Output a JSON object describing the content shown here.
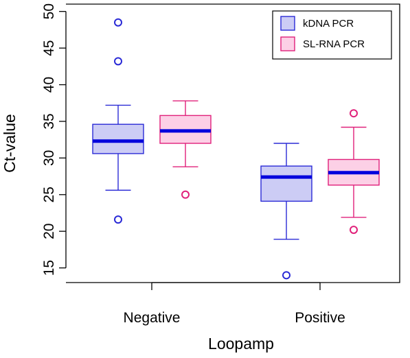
{
  "chart_data": {
    "type": "boxplot",
    "xlabel": "Loopamp",
    "ylabel": "Ct-value",
    "ylim": [
      13,
      51
    ],
    "yticks": [
      15,
      20,
      25,
      30,
      35,
      40,
      45,
      50
    ],
    "categories": [
      "Negative",
      "Positive"
    ],
    "grid": false,
    "legend_position": "top-right",
    "series": [
      {
        "name": "kDNA PCR",
        "fill": "#ccccf5",
        "stroke": "#2a2ad6",
        "median_color": "#0000dd",
        "boxes": [
          {
            "category": "Negative",
            "whisker_low": 25.6,
            "q1": 30.6,
            "median": 32.3,
            "q3": 34.6,
            "whisker_high": 37.2,
            "outliers": [
              48.5,
              43.2,
              21.6
            ]
          },
          {
            "category": "Positive",
            "whisker_low": 18.9,
            "q1": 24.1,
            "median": 27.4,
            "q3": 28.9,
            "whisker_high": 32.0,
            "outliers": [
              14.0
            ]
          }
        ]
      },
      {
        "name": "SL-RNA PCR",
        "fill": "#fcd0e6",
        "stroke": "#e0207a",
        "median_color": "#0000dd",
        "boxes": [
          {
            "category": "Negative",
            "whisker_low": 28.8,
            "q1": 32.0,
            "median": 33.7,
            "q3": 35.8,
            "whisker_high": 37.8,
            "outliers": [
              25.0
            ]
          },
          {
            "category": "Positive",
            "whisker_low": 21.9,
            "q1": 26.3,
            "median": 28.0,
            "q3": 29.8,
            "whisker_high": 34.2,
            "outliers": [
              36.1,
              20.2
            ]
          }
        ]
      }
    ]
  }
}
